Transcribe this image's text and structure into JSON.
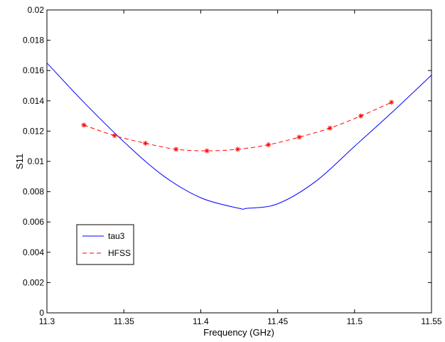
{
  "chart_data": {
    "type": "line",
    "title": "",
    "xlabel": "Frequency (GHz)",
    "ylabel": "S11",
    "xlim": [
      11.3,
      11.55
    ],
    "ylim": [
      0,
      0.02
    ],
    "x_ticks": [
      "11.3",
      "11.35",
      "11.4",
      "11.45",
      "11.5",
      "11.55"
    ],
    "y_ticks": [
      "0",
      "0.002",
      "0.004",
      "0.006",
      "0.008",
      "0.01",
      "0.012",
      "0.014",
      "0.016",
      "0.018",
      "0.02"
    ],
    "grid": false,
    "legend_position": "lower-left",
    "series": [
      {
        "name": "tau3",
        "color": "#0000ff",
        "style": "solid",
        "x": [
          11.3,
          11.325,
          11.35,
          11.375,
          11.4,
          11.425,
          11.43,
          11.45,
          11.475,
          11.5,
          11.525,
          11.55
        ],
        "y": [
          0.0165,
          0.0138,
          0.0113,
          0.0091,
          0.0076,
          0.0069,
          0.0069,
          0.0072,
          0.0087,
          0.011,
          0.0133,
          0.0157
        ]
      },
      {
        "name": "HFSS",
        "color": "#ff0000",
        "style": "dashed",
        "marker": "asterisk",
        "x": [
          11.324,
          11.344,
          11.364,
          11.384,
          11.404,
          11.424,
          11.444,
          11.464,
          11.484,
          11.504,
          11.524
        ],
        "y": [
          0.0124,
          0.0117,
          0.0112,
          0.0108,
          0.0107,
          0.0108,
          0.0111,
          0.0116,
          0.0122,
          0.013,
          0.0139
        ]
      }
    ]
  }
}
